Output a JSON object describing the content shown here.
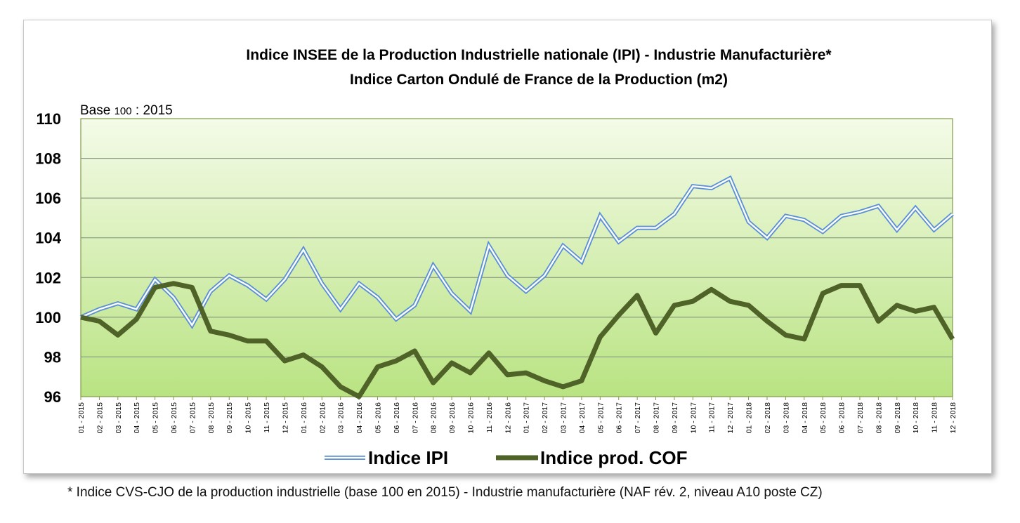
{
  "chart_data": {
    "type": "line",
    "title_lines": [
      "Indice INSEE de la Production Industrielle nationale (IPI) - Industrie Manufacturière*",
      "Indice Carton Ondulé de France de la Production (m2)"
    ],
    "base_note_prefix": "Base ",
    "base_note_small": "100",
    "base_note_suffix": " : 2015",
    "ylim": [
      96,
      110
    ],
    "yticks": [
      "96",
      "98",
      "100",
      "102",
      "104",
      "106",
      "108",
      "110"
    ],
    "grid": true,
    "legend_position": "bottom",
    "x": [
      "01 - 2015",
      "02 - 2015",
      "03 - 2015",
      "04 - 2015",
      "05 - 2015",
      "06 - 2015",
      "07 - 2015",
      "08 - 2015",
      "09 - 2015",
      "10 - 2015",
      "11 - 2015",
      "12 - 2015",
      "01 - 2016",
      "02 - 2016",
      "03 - 2016",
      "04 - 2016",
      "05 - 2016",
      "06 - 2016",
      "07 - 2016",
      "08 - 2016",
      "09 - 2016",
      "10 - 2016",
      "11 - 2016",
      "12 - 2016",
      "01 - 2017",
      "02 - 2017",
      "03 - 2017",
      "04 - 2017",
      "05 - 2017",
      "06 - 2017",
      "07 - 2017",
      "08 - 2017",
      "09 - 2017",
      "10 - 2017",
      "11 - 2017",
      "12 - 2017",
      "01 - 2018",
      "02 - 2018",
      "03 - 2018",
      "04 - 2018",
      "05 - 2018",
      "06 - 2018",
      "07 - 2018",
      "08 - 2018",
      "09 - 2018",
      "10 - 2018",
      "11 - 2018",
      "12 - 2018"
    ],
    "series": [
      {
        "name": "Indice IPI",
        "color": "#5b8fd6",
        "style": "double-line",
        "values": [
          100.0,
          100.4,
          100.7,
          100.4,
          101.9,
          101.0,
          99.6,
          101.3,
          102.1,
          101.6,
          100.9,
          101.9,
          103.4,
          101.7,
          100.4,
          101.7,
          101.0,
          99.9,
          100.6,
          102.6,
          101.2,
          100.3,
          103.6,
          102.1,
          101.3,
          102.1,
          103.6,
          102.8,
          105.1,
          103.8,
          104.5,
          104.5,
          105.2,
          106.6,
          106.5,
          107.0,
          104.8,
          104.0,
          105.1,
          104.9,
          104.3,
          105.1,
          105.3,
          105.6,
          104.4,
          105.5,
          104.4,
          105.2
        ]
      },
      {
        "name": "Indice prod. COF",
        "color": "#4f6228",
        "style": "thick-line",
        "values": [
          100.0,
          99.8,
          99.1,
          99.9,
          101.5,
          101.7,
          101.5,
          99.3,
          99.1,
          98.8,
          98.8,
          97.8,
          98.1,
          97.5,
          96.5,
          96.0,
          97.5,
          97.8,
          98.3,
          96.7,
          97.7,
          97.2,
          98.2,
          97.1,
          97.2,
          96.8,
          96.5,
          96.8,
          99.0,
          100.1,
          101.1,
          99.2,
          100.6,
          100.8,
          101.4,
          100.8,
          100.6,
          99.8,
          99.1,
          98.9,
          101.2,
          101.6,
          101.6,
          99.8,
          100.6,
          100.3,
          100.5,
          98.9
        ]
      }
    ]
  },
  "colors": {
    "plot_fill_top": "#f4fbe8",
    "plot_fill_bottom": "#b9e382",
    "plot_border": "#7f9a47",
    "grid": "#7f8c7a"
  },
  "footnote": "* Indice CVS-CJO de la production industrielle (base 100 en 2015) - Industrie manufacturière (NAF rév. 2, niveau A10 poste CZ)"
}
